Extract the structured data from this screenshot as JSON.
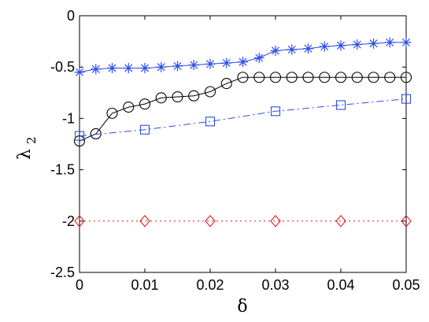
{
  "chart_data": {
    "type": "line",
    "xlabel": "δ",
    "ylabel": "λ",
    "ylabel_subscript": "2",
    "xlim": [
      0,
      0.05
    ],
    "ylim": [
      -2.5,
      0
    ],
    "x_ticks": [
      0,
      0.01,
      0.02,
      0.03,
      0.04,
      0.05
    ],
    "x_tick_labels": [
      "0",
      "0.01",
      "0.02",
      "0.03",
      "0.04",
      "0.05"
    ],
    "y_ticks": [
      0,
      -0.5,
      -1,
      -1.5,
      -2,
      -2.5
    ],
    "y_tick_labels": [
      "0",
      "-0.5",
      "-1",
      "-1.5",
      "-2",
      "-2.5"
    ],
    "grid": false,
    "legend": "none",
    "series": [
      {
        "marker": "asterisk",
        "line_style": "solid",
        "color": "#2b4de8",
        "x": [
          0,
          0.0025,
          0.005,
          0.0075,
          0.01,
          0.0125,
          0.015,
          0.0175,
          0.02,
          0.0225,
          0.025,
          0.0275,
          0.03,
          0.0325,
          0.035,
          0.0375,
          0.04,
          0.0425,
          0.045,
          0.0475,
          0.05
        ],
        "y": [
          -0.55,
          -0.52,
          -0.51,
          -0.51,
          -0.51,
          -0.5,
          -0.49,
          -0.48,
          -0.47,
          -0.46,
          -0.45,
          -0.41,
          -0.34,
          -0.33,
          -0.32,
          -0.3,
          -0.29,
          -0.28,
          -0.27,
          -0.26,
          -0.26
        ]
      },
      {
        "marker": "circle",
        "line_style": "solid",
        "color": "#000000",
        "x": [
          0,
          0.0025,
          0.005,
          0.0075,
          0.01,
          0.0125,
          0.015,
          0.0175,
          0.02,
          0.0225,
          0.025,
          0.0275,
          0.03,
          0.0325,
          0.035,
          0.0375,
          0.04,
          0.0425,
          0.045,
          0.0475,
          0.05
        ],
        "y": [
          -1.22,
          -1.15,
          -0.95,
          -0.89,
          -0.86,
          -0.8,
          -0.79,
          -0.78,
          -0.74,
          -0.66,
          -0.6,
          -0.6,
          -0.6,
          -0.6,
          -0.6,
          -0.6,
          -0.6,
          -0.6,
          -0.6,
          -0.6,
          -0.6
        ]
      },
      {
        "marker": "square",
        "line_style": "dashdot",
        "color": "#2b4de8",
        "x": [
          0,
          0.01,
          0.02,
          0.03,
          0.04,
          0.05
        ],
        "y": [
          -1.17,
          -1.11,
          -1.03,
          -0.93,
          -0.87,
          -0.81
        ]
      },
      {
        "marker": "diamond",
        "line_style": "dotted",
        "color": "#e8141c",
        "x": [
          0,
          0.01,
          0.02,
          0.03,
          0.04,
          0.05
        ],
        "y": [
          -2,
          -2,
          -2,
          -2,
          -2,
          -2
        ]
      }
    ]
  }
}
